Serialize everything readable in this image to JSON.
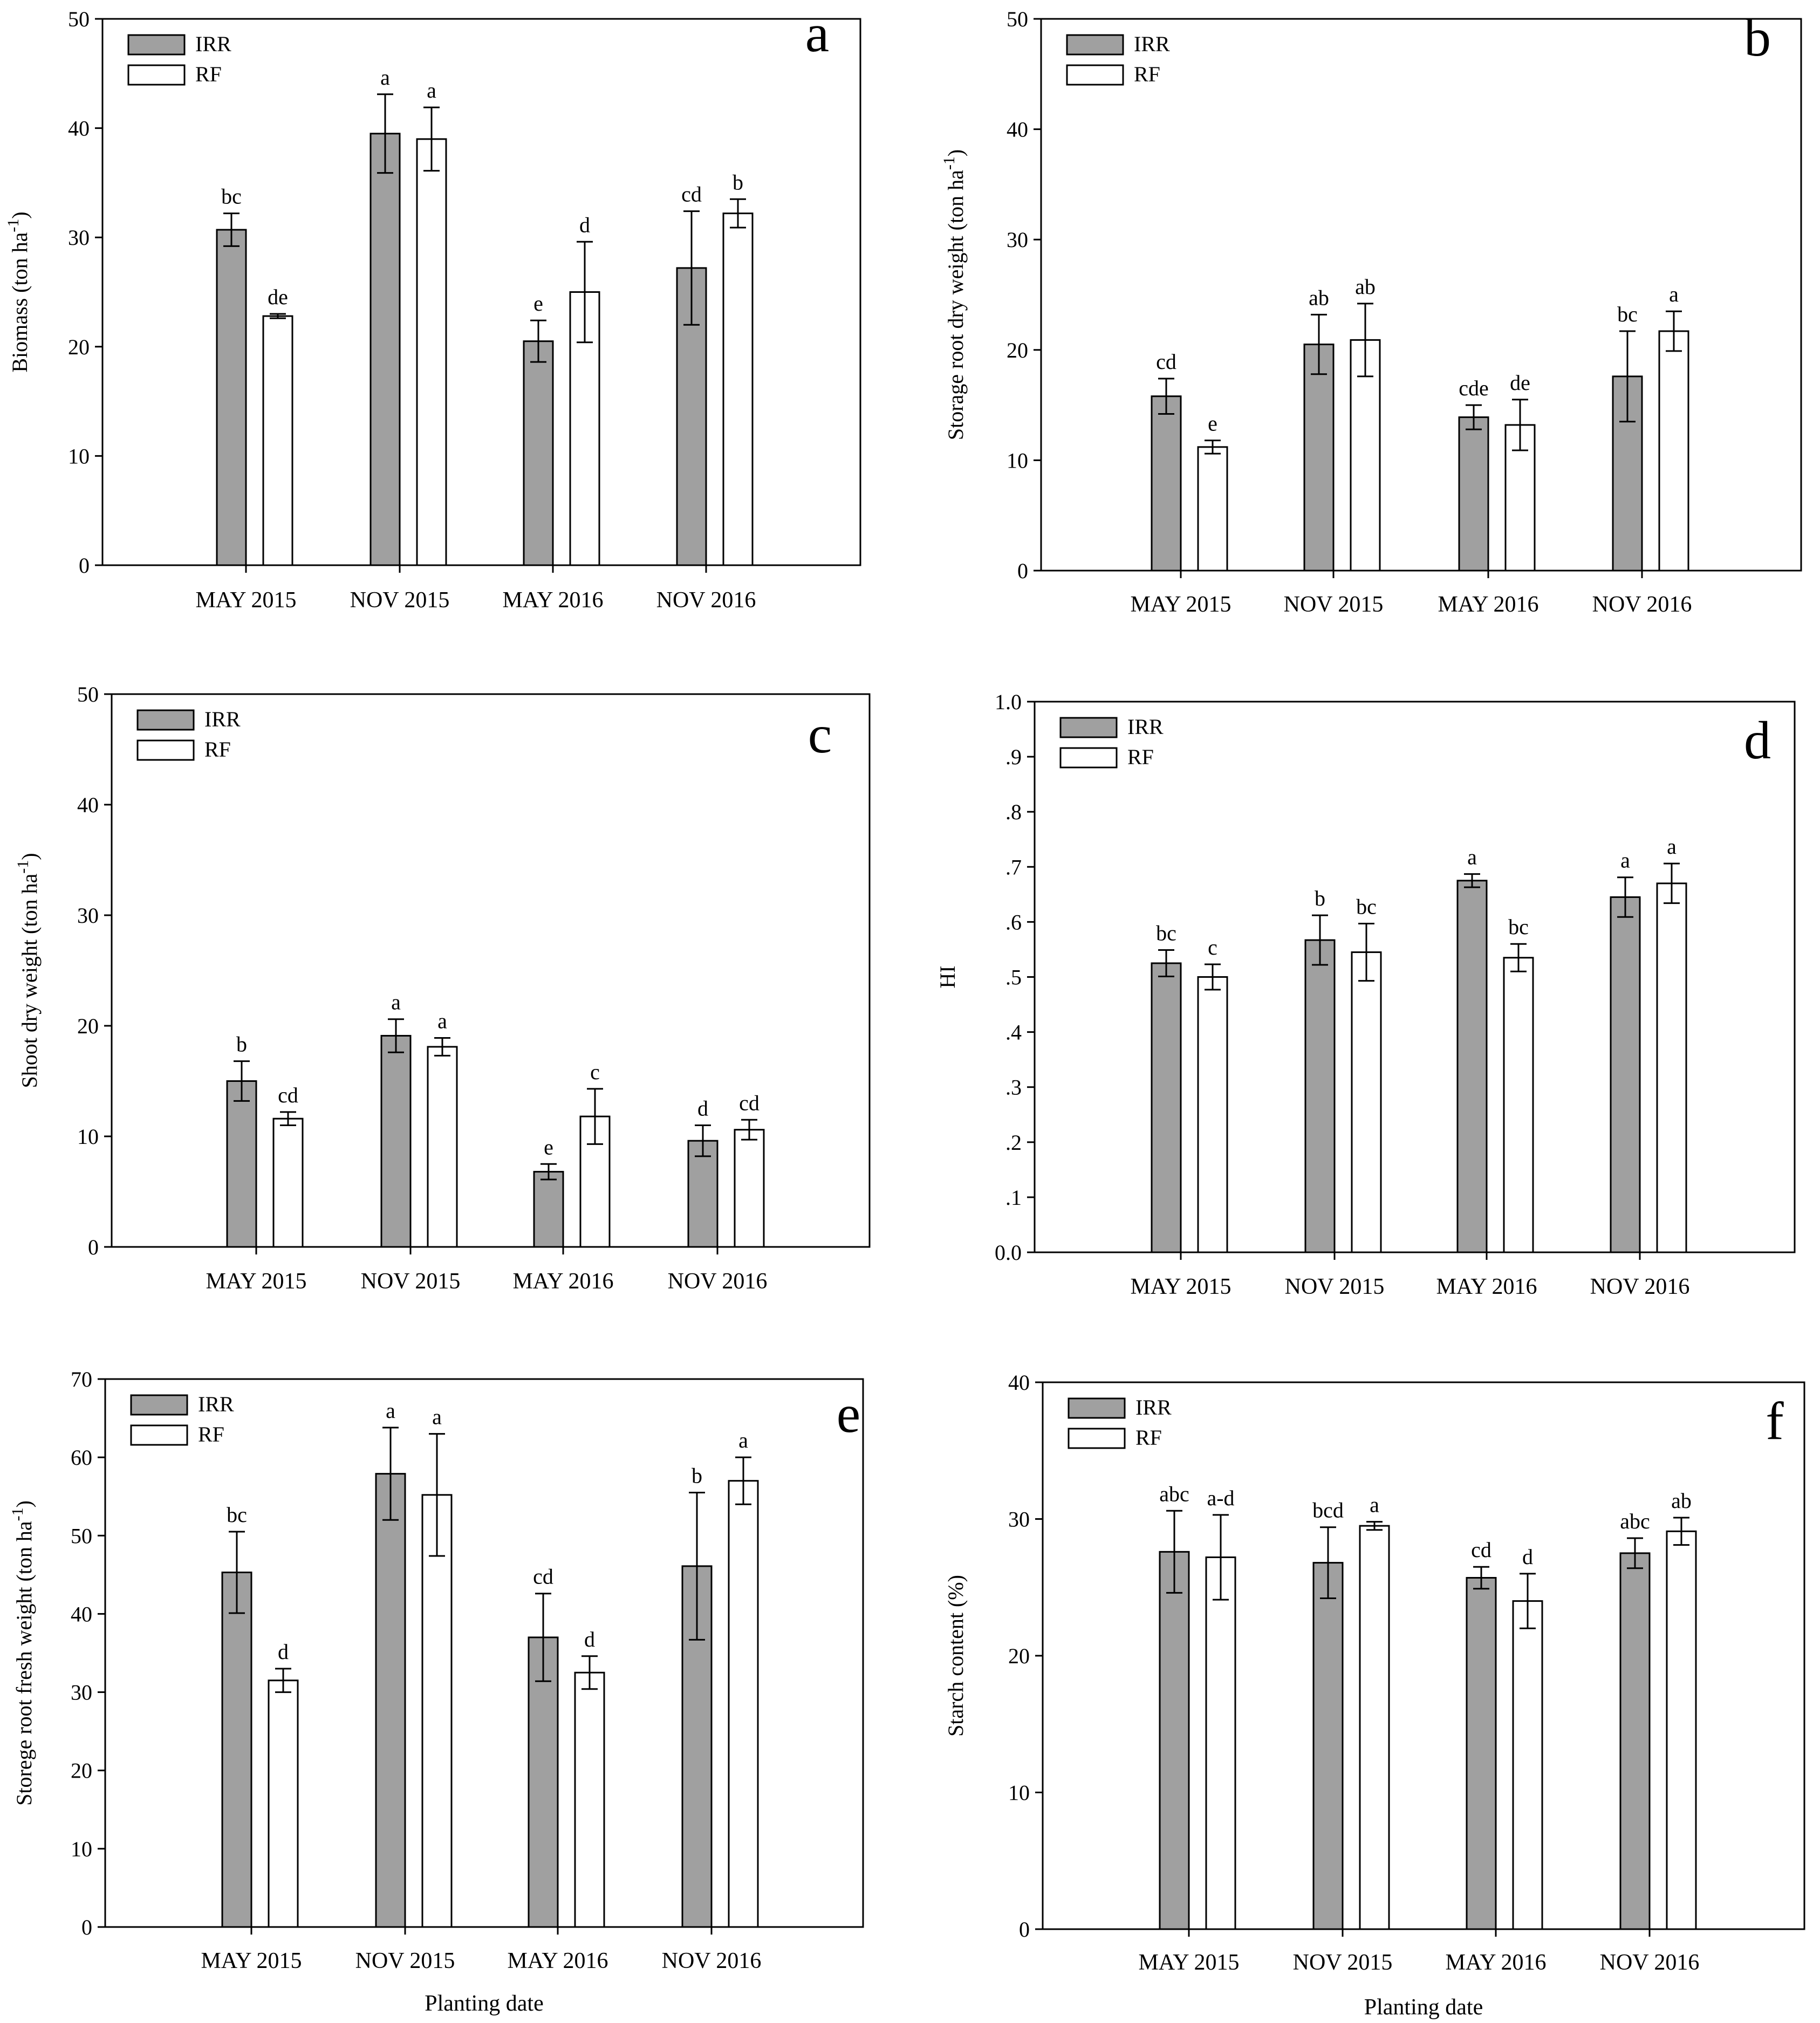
{
  "figure": {
    "x_axis_title": "Planting date",
    "legend": [
      "IRR",
      "RF"
    ],
    "colors": {
      "IRR": "#a0a0a0",
      "RF": "#ffffff",
      "axis": "#000000"
    }
  },
  "chart_data": [
    {
      "id": "a",
      "type": "bar",
      "panel_letter": "a",
      "ylabel": "Biomass (ton ha",
      "ylabel_sup": "-1",
      "ylabel_end": ")",
      "categories": [
        "MAY 2015",
        "NOV 2015",
        "MAY 2016",
        "NOV 2016"
      ],
      "ylim": [
        0,
        50
      ],
      "yticks": [
        "0",
        "10",
        "20",
        "30",
        "40",
        "50"
      ],
      "ytick_values": [
        0,
        10,
        20,
        30,
        40,
        50
      ],
      "legend_position": "top-left",
      "series": [
        {
          "name": "IRR",
          "values": [
            30.7,
            39.5,
            20.5,
            27.2
          ],
          "errors": [
            1.5,
            3.6,
            1.9,
            5.2
          ],
          "labels": [
            "bc",
            "a",
            "e",
            "cd"
          ]
        },
        {
          "name": "RF",
          "values": [
            22.8,
            39.0,
            25.0,
            32.2
          ],
          "errors": [
            0.2,
            2.9,
            4.6,
            1.3
          ],
          "labels": [
            "de",
            "a",
            "d",
            "b"
          ]
        }
      ]
    },
    {
      "id": "b",
      "type": "bar",
      "panel_letter": "b",
      "ylabel": "Storage root dry weight  (ton ha",
      "ylabel_sup": "-1",
      "ylabel_end": ")",
      "categories": [
        "MAY 2015",
        "NOV 2015",
        "MAY 2016",
        "NOV 2016"
      ],
      "ylim": [
        0,
        50
      ],
      "yticks": [
        "0",
        "10",
        "20",
        "30",
        "40",
        "50"
      ],
      "ytick_values": [
        0,
        10,
        20,
        30,
        40,
        50
      ],
      "legend_position": "top-left",
      "series": [
        {
          "name": "IRR",
          "values": [
            15.8,
            20.5,
            13.9,
            17.6
          ],
          "errors": [
            1.6,
            2.7,
            1.1,
            4.1
          ],
          "labels": [
            "cd",
            "ab",
            "cde",
            "bc"
          ]
        },
        {
          "name": "RF",
          "values": [
            11.2,
            20.9,
            13.2,
            21.7
          ],
          "errors": [
            0.6,
            3.3,
            2.3,
            1.8
          ],
          "labels": [
            "e",
            "ab",
            "de",
            "a"
          ]
        }
      ]
    },
    {
      "id": "c",
      "type": "bar",
      "panel_letter": "c",
      "ylabel": "Shoot dry weight  (ton ha",
      "ylabel_sup": "-1",
      "ylabel_end": ")",
      "categories": [
        "MAY 2015",
        "NOV 2015",
        "MAY 2016",
        "NOV 2016"
      ],
      "ylim": [
        0,
        50
      ],
      "yticks": [
        "0",
        "10",
        "20",
        "30",
        "40",
        "50"
      ],
      "ytick_values": [
        0,
        10,
        20,
        30,
        40,
        50
      ],
      "legend_position": "top-left",
      "series": [
        {
          "name": "IRR",
          "values": [
            15.0,
            19.1,
            6.8,
            9.6
          ],
          "errors": [
            1.8,
            1.5,
            0.7,
            1.4
          ],
          "labels": [
            "b",
            "a",
            "e",
            "d"
          ]
        },
        {
          "name": "RF",
          "values": [
            11.6,
            18.1,
            11.8,
            10.6
          ],
          "errors": [
            0.6,
            0.8,
            2.5,
            0.9
          ],
          "labels": [
            "cd",
            "a",
            "c",
            "cd"
          ]
        }
      ]
    },
    {
      "id": "d",
      "type": "bar",
      "panel_letter": "d",
      "ylabel": "HI",
      "ylabel_sup": "",
      "ylabel_end": "",
      "categories": [
        "MAY 2015",
        "NOV 2015",
        "MAY 2016",
        "NOV 2016"
      ],
      "ylim": [
        0,
        1
      ],
      "yticks": [
        "0.0",
        ".1",
        ".2",
        ".3",
        ".4",
        ".5",
        ".6",
        ".7",
        ".8",
        ".9",
        "1.0"
      ],
      "ytick_values": [
        0,
        0.1,
        0.2,
        0.3,
        0.4,
        0.5,
        0.6,
        0.7,
        0.8,
        0.9,
        1.0
      ],
      "legend_position": "top-left",
      "series": [
        {
          "name": "IRR",
          "values": [
            0.525,
            0.567,
            0.675,
            0.645
          ],
          "errors": [
            0.024,
            0.045,
            0.012,
            0.036
          ],
          "labels": [
            "bc",
            "b",
            "a",
            "a"
          ]
        },
        {
          "name": "RF",
          "values": [
            0.5,
            0.545,
            0.535,
            0.67
          ],
          "errors": [
            0.023,
            0.052,
            0.025,
            0.036
          ],
          "labels": [
            "c",
            "bc",
            "bc",
            "a"
          ]
        }
      ]
    },
    {
      "id": "e",
      "type": "bar",
      "panel_letter": "e",
      "ylabel": "Storege root fresh weight (ton ha",
      "ylabel_sup": "-1",
      "ylabel_end": ")",
      "categories": [
        "MAY 2015",
        "NOV 2015",
        "MAY 2016",
        "NOV 2016"
      ],
      "ylim": [
        0,
        70
      ],
      "yticks": [
        "0",
        "10",
        "20",
        "30",
        "40",
        "50",
        "60",
        "70"
      ],
      "ytick_values": [
        0,
        10,
        20,
        30,
        40,
        50,
        60,
        70
      ],
      "legend_position": "top-left",
      "series": [
        {
          "name": "IRR",
          "values": [
            45.3,
            57.9,
            37.0,
            46.1
          ],
          "errors": [
            5.2,
            5.9,
            5.6,
            9.4
          ],
          "labels": [
            "bc",
            "a",
            "cd",
            "b"
          ]
        },
        {
          "name": "RF",
          "values": [
            31.5,
            55.2,
            32.5,
            57.0
          ],
          "errors": [
            1.5,
            7.8,
            2.1,
            3.0
          ],
          "labels": [
            "d",
            "a",
            "d",
            "a"
          ]
        }
      ]
    },
    {
      "id": "f",
      "type": "bar",
      "panel_letter": "f",
      "ylabel": "Starch content  (%)",
      "ylabel_sup": "",
      "ylabel_end": "",
      "categories": [
        "MAY 2015",
        "NOV 2015",
        "MAY 2016",
        "NOV 2016"
      ],
      "ylim": [
        0,
        40
      ],
      "yticks": [
        "0",
        "10",
        "20",
        "30",
        "40"
      ],
      "ytick_values": [
        0,
        10,
        20,
        30,
        40
      ],
      "legend_position": "top-left",
      "series": [
        {
          "name": "IRR",
          "values": [
            27.6,
            26.8,
            25.7,
            27.5
          ],
          "errors": [
            3.0,
            2.6,
            0.8,
            1.1
          ],
          "labels": [
            "abc",
            "bcd",
            "cd",
            "abc"
          ]
        },
        {
          "name": "RF",
          "values": [
            27.2,
            29.5,
            24.0,
            29.1
          ],
          "errors": [
            3.1,
            0.3,
            2.0,
            1.0
          ],
          "labels": [
            "a-d",
            "a",
            "d",
            "ab"
          ]
        }
      ]
    }
  ]
}
